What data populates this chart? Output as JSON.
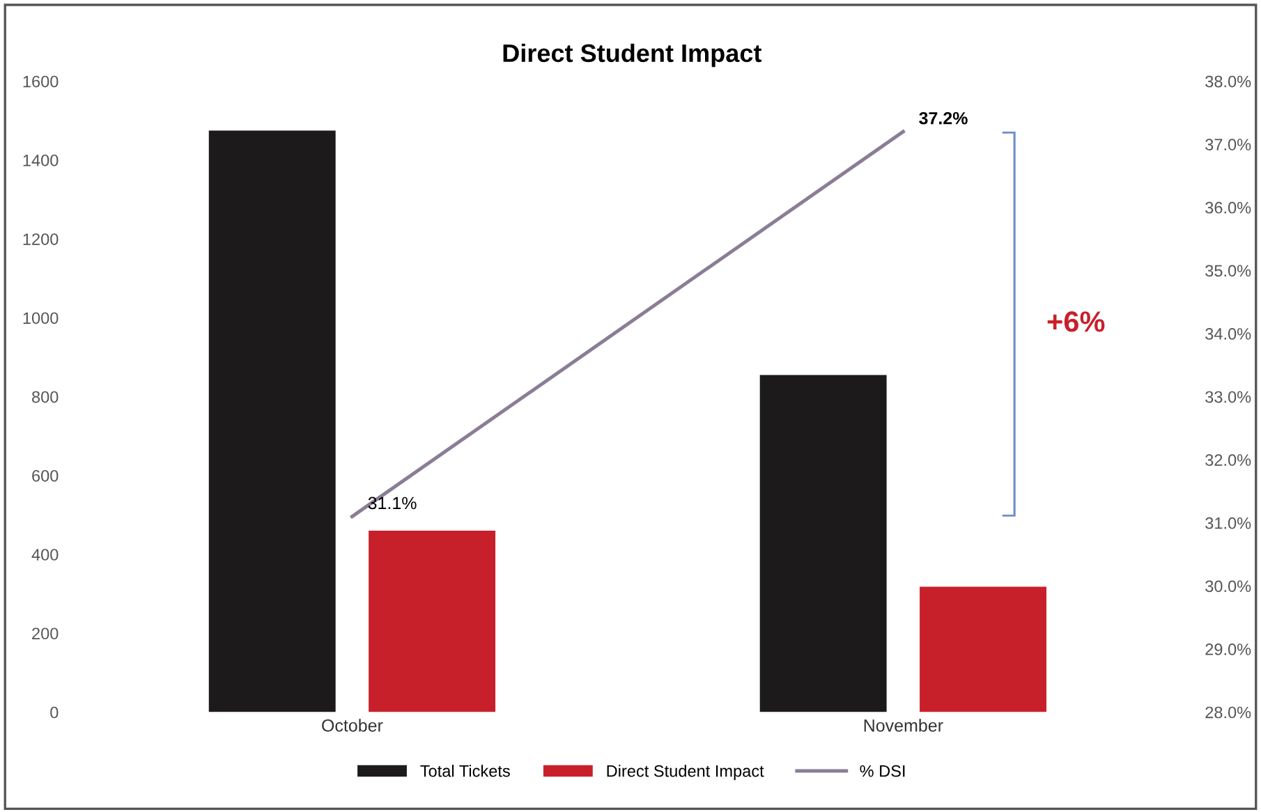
{
  "chart_data": {
    "type": "bar",
    "title": "Direct Student Impact",
    "categories": [
      "October",
      "November"
    ],
    "series": [
      {
        "name": "Total Tickets",
        "color": "#1c1a1b",
        "values": [
          1475,
          855
        ]
      },
      {
        "name": "Direct Student Impact",
        "color": "#c8202b",
        "values": [
          460,
          318
        ]
      },
      {
        "name": "% DSI",
        "type": "line",
        "axis": "y2",
        "color": "#8a7d95",
        "values": [
          31.1,
          37.2
        ],
        "value_labels": [
          "31.1%",
          "37.2%"
        ]
      }
    ],
    "ylim": [
      0,
      1600
    ],
    "yticks": [
      0,
      200,
      400,
      600,
      800,
      1000,
      1200,
      1400,
      1600
    ],
    "y2lim": [
      28,
      38
    ],
    "y2ticks": [
      {
        "value": 28,
        "label": "28.0%"
      },
      {
        "value": 29,
        "label": "29.0%"
      },
      {
        "value": 30,
        "label": "30.0%"
      },
      {
        "value": 31,
        "label": "31.0%"
      },
      {
        "value": 32,
        "label": "32.0%"
      },
      {
        "value": 33,
        "label": "33.0%"
      },
      {
        "value": 34,
        "label": "34.0%"
      },
      {
        "value": 35,
        "label": "35.0%"
      },
      {
        "value": 36,
        "label": "36.0%"
      },
      {
        "value": 37,
        "label": "37.0%"
      },
      {
        "value": 38,
        "label": "38.0%"
      }
    ],
    "annotations": [
      "+6%"
    ],
    "grid": false,
    "legend": "bottom",
    "marker": "none"
  }
}
